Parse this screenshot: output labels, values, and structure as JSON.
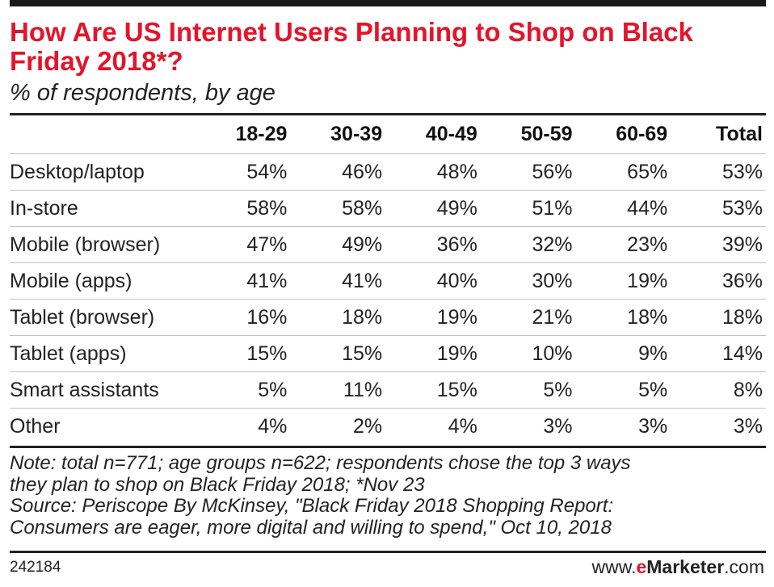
{
  "title_line1": "How Are US Internet Users Planning to Shop on Black",
  "title_line2": "Friday 2018*?",
  "subtitle": "% of respondents, by age",
  "chart_data": {
    "type": "table",
    "columns": [
      "18-29",
      "30-39",
      "40-49",
      "50-59",
      "60-69",
      "Total"
    ],
    "rows": [
      {
        "label": "Desktop/laptop",
        "values": [
          "54%",
          "46%",
          "48%",
          "56%",
          "65%",
          "53%"
        ]
      },
      {
        "label": "In-store",
        "values": [
          "58%",
          "58%",
          "49%",
          "51%",
          "44%",
          "53%"
        ]
      },
      {
        "label": "Mobile (browser)",
        "values": [
          "47%",
          "49%",
          "36%",
          "32%",
          "23%",
          "39%"
        ]
      },
      {
        "label": "Mobile (apps)",
        "values": [
          "41%",
          "41%",
          "40%",
          "30%",
          "19%",
          "36%"
        ]
      },
      {
        "label": "Tablet (browser)",
        "values": [
          "16%",
          "18%",
          "19%",
          "21%",
          "18%",
          "18%"
        ]
      },
      {
        "label": "Tablet (apps)",
        "values": [
          "15%",
          "15%",
          "19%",
          "10%",
          "9%",
          "14%"
        ]
      },
      {
        "label": "Smart assistants",
        "values": [
          "5%",
          "11%",
          "15%",
          "5%",
          "5%",
          "8%"
        ]
      },
      {
        "label": "Other",
        "values": [
          "4%",
          "2%",
          "4%",
          "3%",
          "3%",
          "3%"
        ]
      }
    ]
  },
  "notes": [
    "Note: total n=771; age groups n=622; respondents chose the top 3 ways",
    "they plan to shop on Black Friday 2018; *Nov 23",
    "Source: Periscope By McKinsey, \"Black Friday 2018 Shopping Report:",
    "Consumers are eager, more digital and willing to spend,\" Oct 10, 2018"
  ],
  "footer": {
    "chart_id": "242184",
    "brand_prefix": "www.",
    "brand_e": "e",
    "brand_name": "Marketer",
    "brand_suffix": ".com"
  },
  "colors": {
    "title": "#e4142a",
    "rules": "#222222",
    "text": "#222222"
  }
}
